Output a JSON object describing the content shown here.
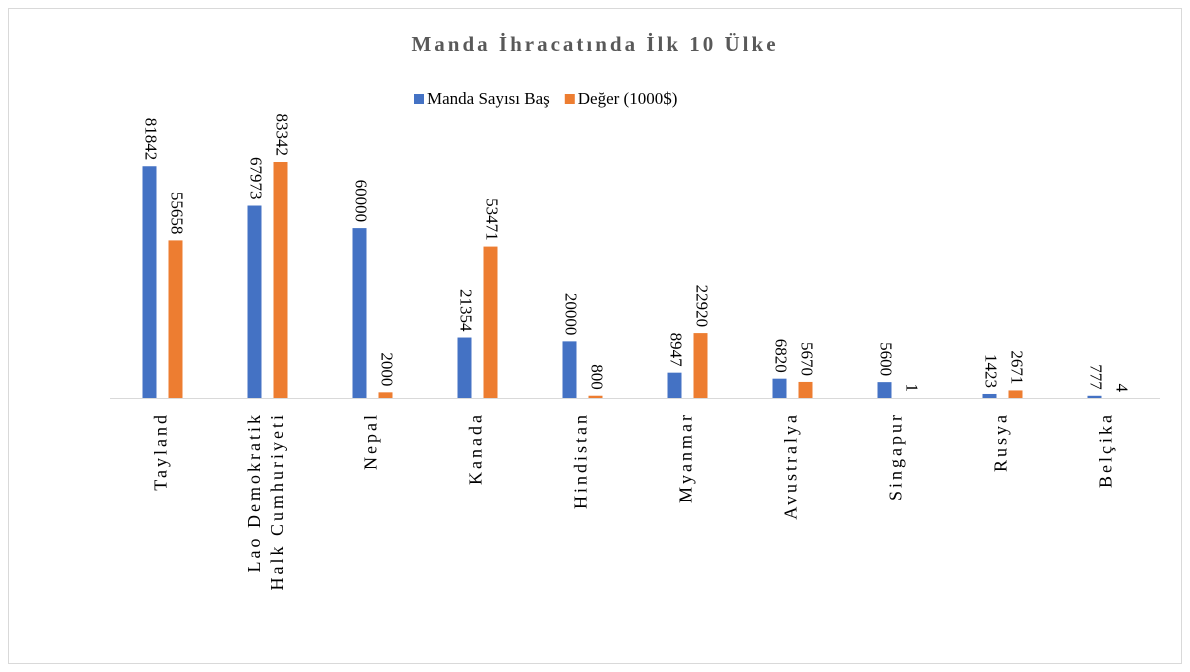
{
  "chart_data": {
    "type": "bar",
    "title": "Manda İhracatında İlk 10 Ülke",
    "categories": [
      "Tayland",
      "Lao Demokratik\nHalk Cumhuriyeti",
      "Nepal",
      "Kanada",
      "Hindistan",
      "Myanmar",
      "Avustralya",
      "Singapur",
      "Rusya",
      "Belçika"
    ],
    "series": [
      {
        "name": "Manda Sayısı Baş",
        "color": "#4472c4",
        "values": [
          81842,
          67973,
          60000,
          21354,
          20000,
          8947,
          6820,
          5600,
          1423,
          777
        ]
      },
      {
        "name": "Değer (1000$)",
        "color": "#ed7d31",
        "values": [
          55658,
          83342,
          2000,
          53471,
          800,
          22920,
          5670,
          1,
          2671,
          4
        ]
      }
    ],
    "legend": "top"
  }
}
